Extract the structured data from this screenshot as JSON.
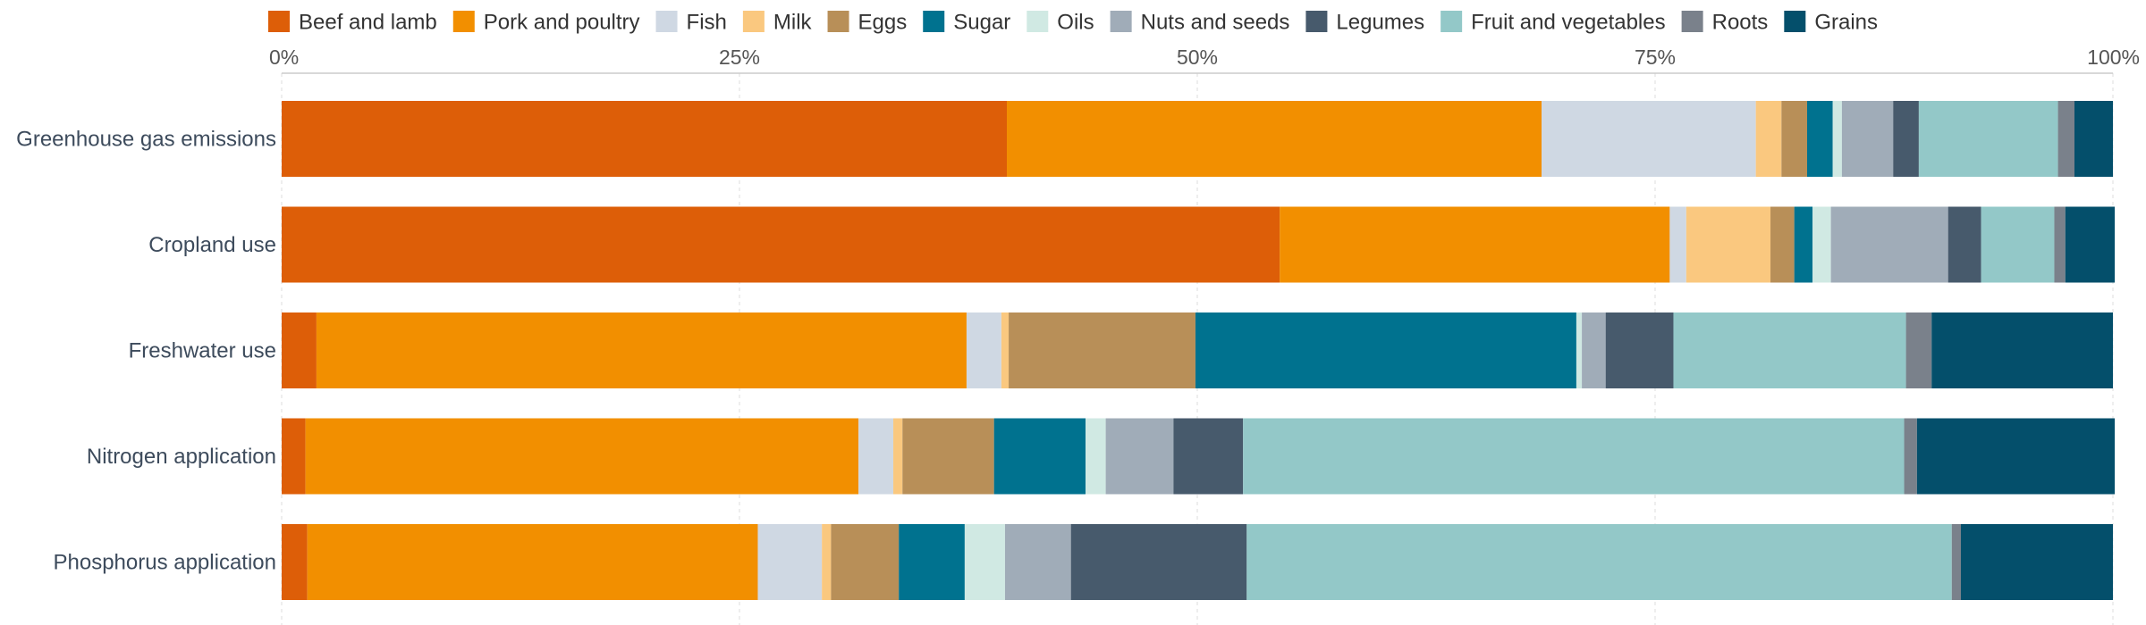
{
  "chart_data": {
    "type": "bar",
    "orientation": "horizontal",
    "stacked": true,
    "normalized": true,
    "title": "",
    "xlabel": "",
    "ylabel": "",
    "xlim": [
      0,
      100
    ],
    "x_ticks": [
      0,
      25,
      50,
      75,
      100
    ],
    "x_tick_labels": [
      "0%",
      "25%",
      "50%",
      "75%",
      "100%"
    ],
    "x_axis_position": "top",
    "grid": true,
    "legend_position": "top",
    "categories": [
      "Greenhouse gas emissions",
      "Cropland use",
      "Freshwater use",
      "Nitrogen application",
      "Phosphorus application"
    ],
    "series": [
      {
        "name": "Beef and lamb",
        "color": "#dd5e08",
        "values": [
          39.6,
          54.5,
          1.9,
          1.3,
          1.4
        ]
      },
      {
        "name": "Pork and poultry",
        "color": "#f28f00",
        "values": [
          29.2,
          21.3,
          35.5,
          30.2,
          24.6
        ]
      },
      {
        "name": "Fish",
        "color": "#cfd8e3",
        "values": [
          11.7,
          0.9,
          1.9,
          1.9,
          3.5
        ]
      },
      {
        "name": "Milk",
        "color": "#fac87f",
        "values": [
          1.4,
          4.6,
          0.4,
          0.5,
          0.5
        ]
      },
      {
        "name": "Eggs",
        "color": "#b88f58",
        "values": [
          1.4,
          1.3,
          10.2,
          5.0,
          3.7
        ]
      },
      {
        "name": "Sugar",
        "color": "#00728f",
        "values": [
          1.4,
          1.0,
          20.8,
          5.0,
          3.6
        ]
      },
      {
        "name": "Oils",
        "color": "#d0e9e3",
        "values": [
          0.5,
          1.0,
          0.3,
          1.1,
          2.2
        ]
      },
      {
        "name": "Nuts and seeds",
        "color": "#a0acb8",
        "values": [
          2.8,
          6.4,
          1.3,
          3.7,
          3.6
        ]
      },
      {
        "name": "Legumes",
        "color": "#475a6c",
        "values": [
          1.4,
          1.8,
          3.7,
          3.8,
          9.6
        ]
      },
      {
        "name": "Fruit and vegetables",
        "color": "#93c8c8",
        "values": [
          7.6,
          4.0,
          12.7,
          36.1,
          38.5
        ]
      },
      {
        "name": "Roots",
        "color": "#7a818b",
        "values": [
          0.9,
          0.6,
          1.4,
          0.7,
          0.5
        ]
      },
      {
        "name": "Grains",
        "color": "#044f6b",
        "values": [
          2.1,
          2.7,
          9.9,
          10.8,
          8.3
        ]
      }
    ]
  }
}
